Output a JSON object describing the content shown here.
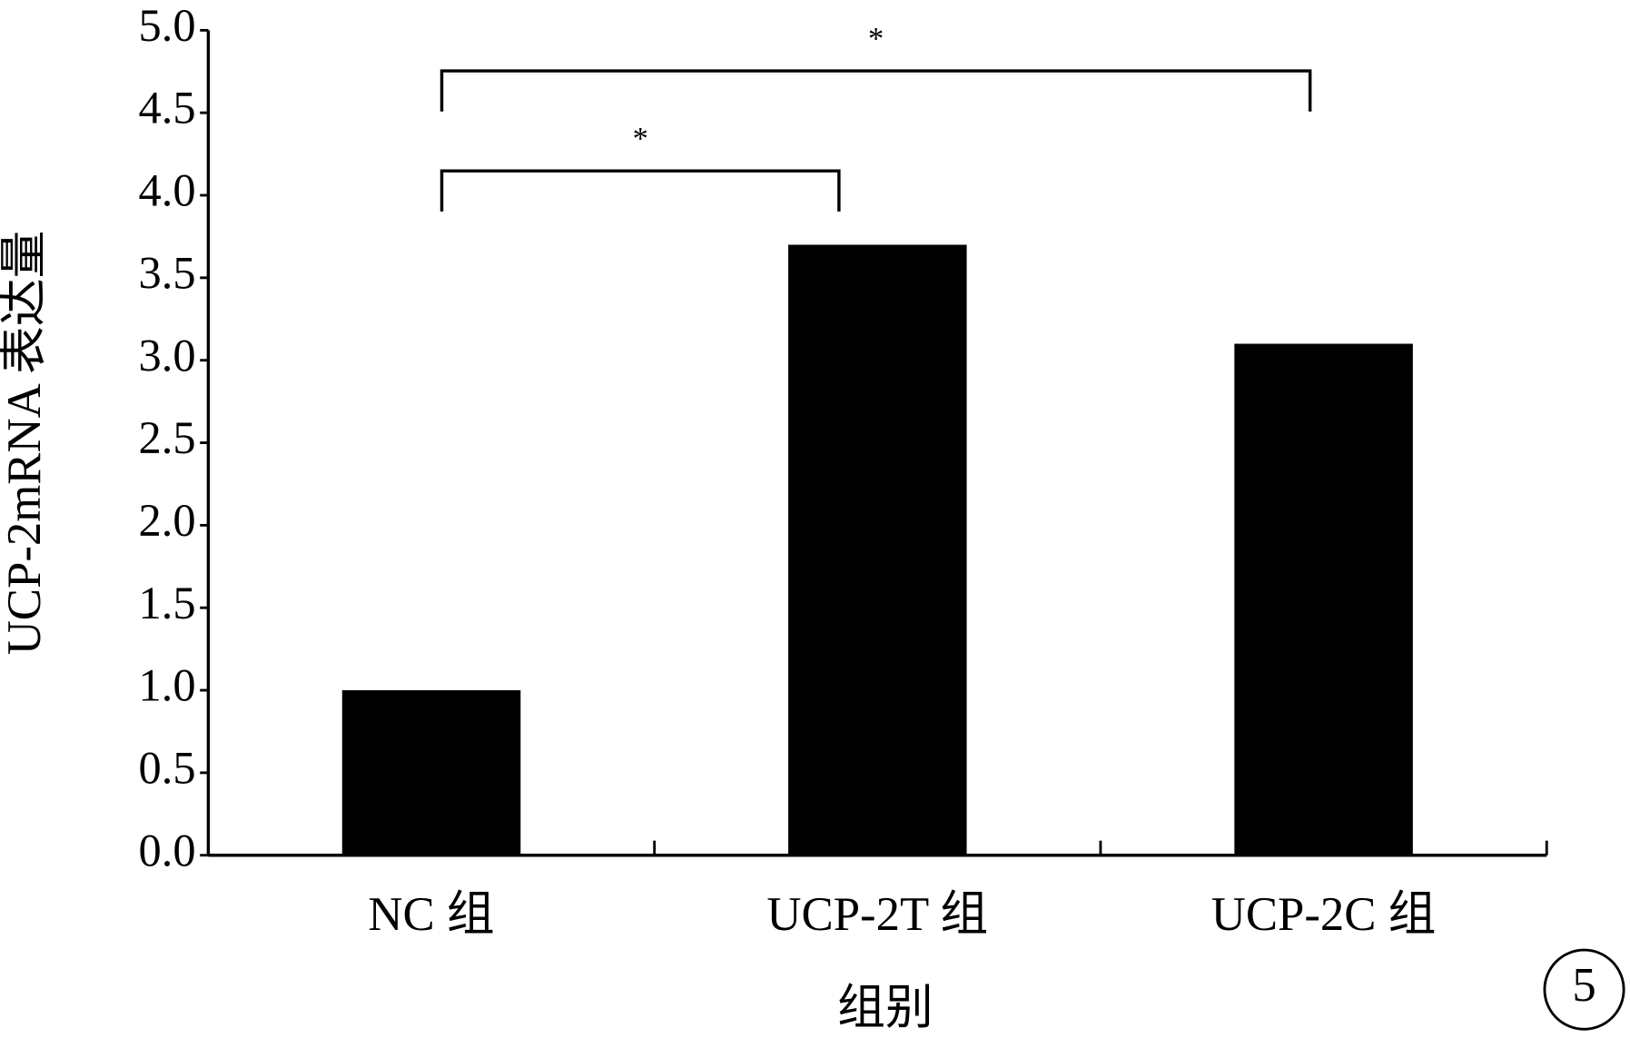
{
  "chart_data": {
    "type": "bar",
    "categories": [
      "NC 组",
      "UCP-2T 组",
      "UCP-2C 组"
    ],
    "values": [
      1.0,
      3.7,
      3.1
    ],
    "color": "#000000",
    "x_label": "组别",
    "y_label": "UCP-2mRNA 表达量",
    "ylim": [
      0,
      5
    ],
    "yticks": [
      {
        "value": 0,
        "label": "0.0"
      },
      0.5,
      {
        "value": 1,
        "label": "1.0"
      },
      1.5,
      {
        "value": 2,
        "label": "2.0"
      },
      2.5,
      {
        "value": 3,
        "label": "3.0"
      },
      3.5,
      {
        "value": 4,
        "label": "4.0"
      },
      4.5,
      {
        "value": 5,
        "label": "5.0"
      }
    ],
    "annotations": [
      "*",
      "*"
    ],
    "panel_label": "5"
  }
}
